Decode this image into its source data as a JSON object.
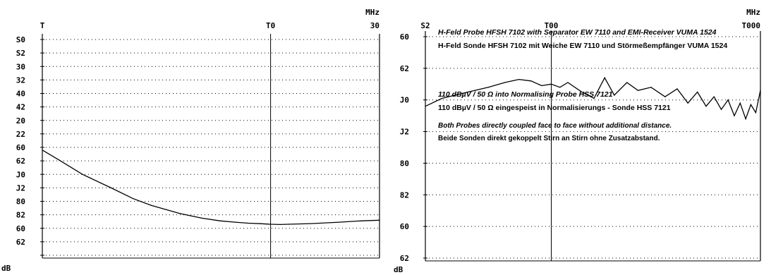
{
  "chart_data": [
    {
      "type": "line",
      "panel": "left",
      "x_ticks": [
        {
          "label": "T",
          "value": 1
        },
        {
          "label": "T0",
          "value": 10
        },
        {
          "label": "30",
          "value": 30
        }
      ],
      "x_unit": "MHz",
      "y_unit": "dB",
      "y_labels": [
        "S0",
        "S2",
        "30",
        "32",
        "40",
        "42",
        "20",
        "22",
        "60",
        "62",
        "J0",
        "J2",
        "80",
        "82",
        "60",
        "62"
      ],
      "xlim": [
        1,
        30
      ],
      "x_scale": "log",
      "grid": true,
      "series": [
        {
          "x": [
            1,
            1.2,
            1.5,
            2,
            2.5,
            3,
            4,
            5,
            6,
            7,
            8,
            9,
            10,
            11,
            12,
            15,
            20,
            25,
            30
          ],
          "y": [
            8.2,
            9.0,
            10.0,
            11.0,
            11.8,
            12.3,
            12.9,
            13.25,
            13.45,
            13.55,
            13.62,
            13.66,
            13.7,
            13.72,
            13.7,
            13.65,
            13.55,
            13.45,
            13.4
          ]
        }
      ]
    },
    {
      "type": "line",
      "panel": "right",
      "x_ticks": [
        {
          "label": "S2",
          "value": 25
        },
        {
          "label": "T00",
          "value": 100
        },
        {
          "label": "T000",
          "value": 1000
        }
      ],
      "x_unit": "MHz",
      "y_unit": "dB",
      "y_labels": [
        "60",
        "62",
        "J0",
        "J2",
        "80",
        "82",
        "60",
        "62"
      ],
      "xlim": [
        25,
        1000
      ],
      "x_scale": "log",
      "grid": true,
      "series": [
        {
          "x": [
            25,
            30,
            40,
            50,
            60,
            70,
            80,
            90,
            100,
            110,
            120,
            140,
            160,
            180,
            200,
            230,
            260,
            300,
            350,
            400,
            450,
            500,
            550,
            600,
            650,
            700,
            750,
            800,
            850,
            900,
            950,
            1000
          ],
          "y": [
            2.2,
            1.95,
            1.75,
            1.6,
            1.45,
            1.35,
            1.4,
            1.55,
            1.5,
            1.6,
            1.45,
            1.75,
            1.95,
            1.3,
            1.85,
            1.45,
            1.7,
            1.6,
            1.9,
            1.65,
            2.1,
            1.75,
            2.2,
            1.9,
            2.3,
            2.0,
            2.5,
            2.1,
            2.6,
            2.15,
            2.4,
            1.7
          ]
        }
      ],
      "annotations": [
        {
          "text": "H-Feld Probe HFSH 7102 with Separator EW 7110 and EMI-Receiver VUMA 1524",
          "italic": true
        },
        {
          "text": "H-Feld Sonde HFSH 7102 mit  Weiche EW 7110 und Störmeßempfänger VUMA 1524",
          "italic": false
        },
        {
          "text": "110 dBµV / 50 Ω into Normalising Probe HSS 7121",
          "italic": true
        },
        {
          "text": "110 dBµV / 50 Ω eingespeist in Normalisierungs - Sonde HSS 7121",
          "italic": false
        },
        {
          "text": "Both Probes directly coupled face to face without additional distance.",
          "italic": true
        },
        {
          "text": "Beide Sonden direkt gekoppelt Stirn an Stirn ohne Zusatzabstand.",
          "italic": false
        }
      ]
    }
  ]
}
